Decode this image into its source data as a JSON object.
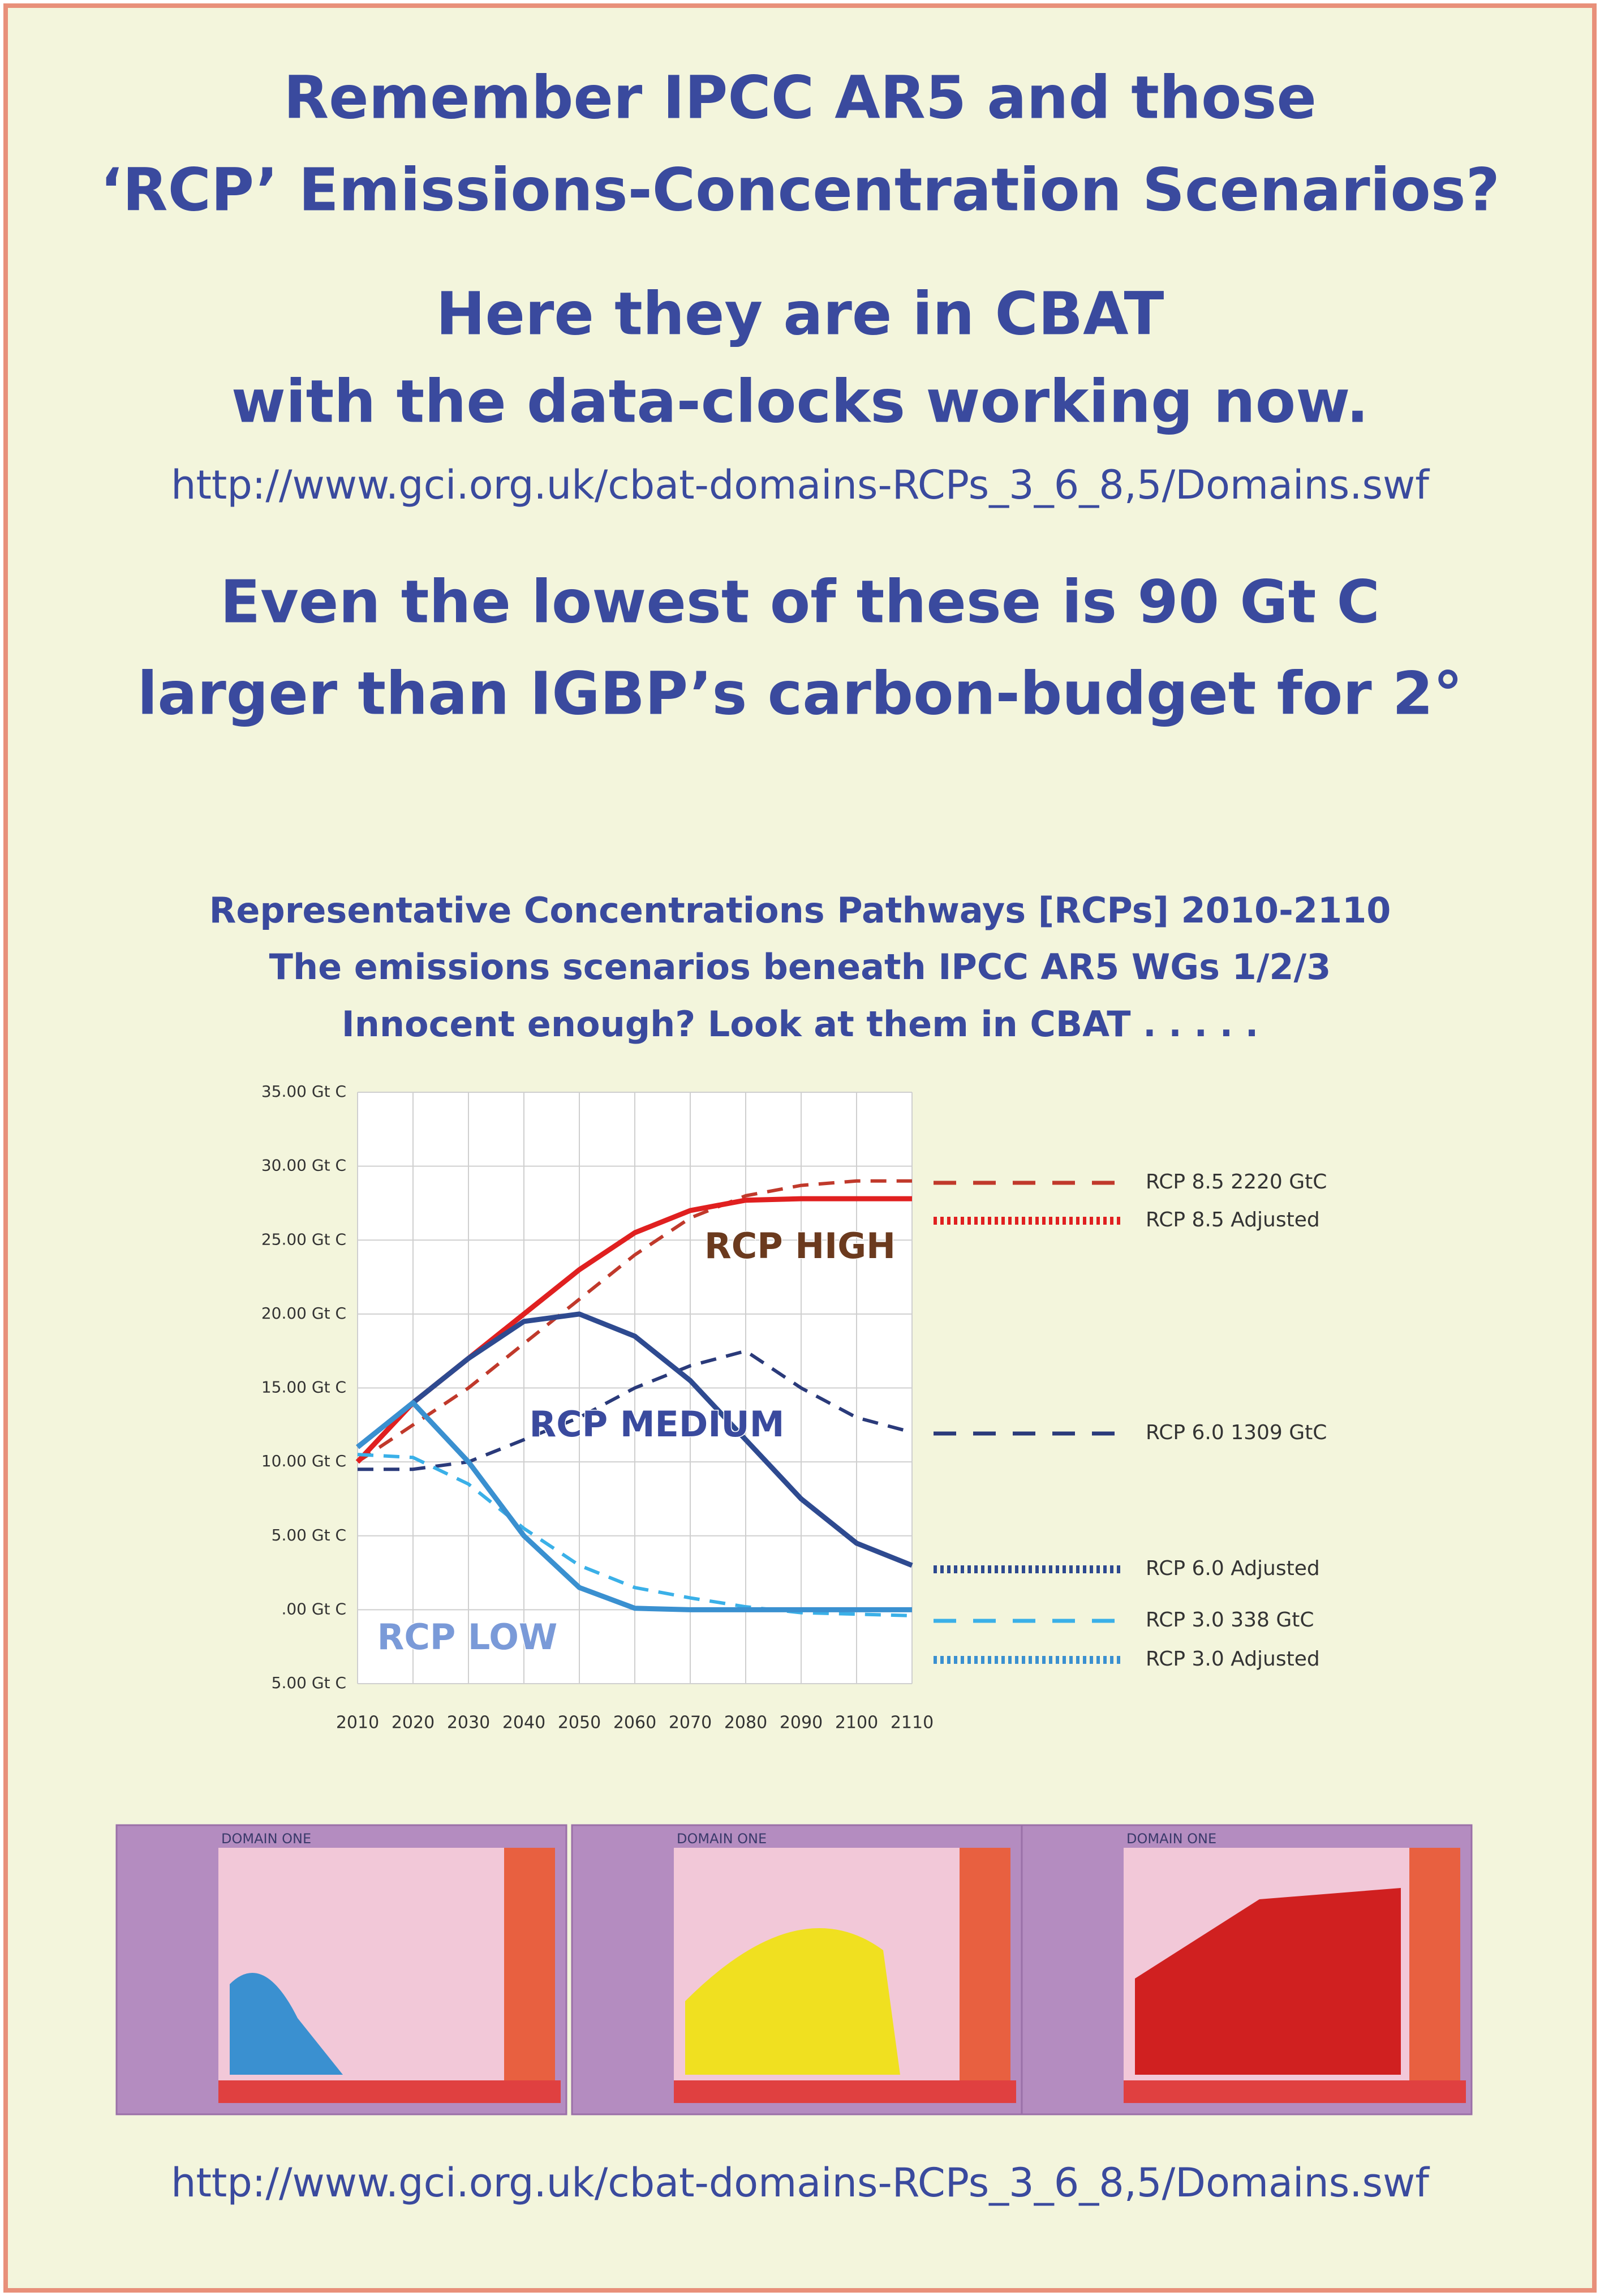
{
  "poster": {
    "heading_1": [
      "Remember IPCC AR5 and those",
      "‘RCP’ Emissions-Concentration Scenarios?"
    ],
    "heading_2": [
      "Here they are in CBAT",
      "with the data-clocks working now."
    ],
    "url_top": "http://www.gci.org.uk/cbat-domains-RCPs_3_6_8,5/Domains.swf",
    "heading_3": [
      "Even the lowest of these is 90 Gt C",
      "larger than IGBP’s carbon-budget for 2°"
    ],
    "thumbnails": [
      "DOMAIN ONE",
      "DOMAIN ONE",
      "DOMAIN ONE"
    ],
    "url_bottom": "http://www.gci.org.uk/cbat-domains-RCPs_3_6_8,5/Domains.swf"
  },
  "chart_data": {
    "type": "line",
    "title": [
      "Representative Concentrations Pathways [RCPs] 2010-2110",
      "The emissions scenarios beneath IPCC AR5 WGs 1/2/3",
      "Innocent enough? Look at them in CBAT  . . . . ."
    ],
    "x": [
      2010,
      2020,
      2030,
      2040,
      2050,
      2060,
      2070,
      2080,
      2090,
      2100,
      2110
    ],
    "xlim": [
      2010,
      2110
    ],
    "xticks": [
      2010,
      2020,
      2030,
      2040,
      2050,
      2060,
      2070,
      2080,
      2090,
      2100,
      2110
    ],
    "ylim": [
      -5,
      35
    ],
    "yticks": [
      {
        "value": -5,
        "label": "5.00 Gt C"
      },
      {
        "value": 0,
        "label": ".00 Gt C"
      },
      {
        "value": 5,
        "label": "5.00 Gt C"
      },
      {
        "value": 10,
        "label": "10.00 Gt C"
      },
      {
        "value": 15,
        "label": "15.00 Gt C"
      },
      {
        "value": 20,
        "label": "20.00 Gt C"
      },
      {
        "value": 25,
        "label": "25.00 Gt C"
      },
      {
        "value": 30,
        "label": "30.00 Gt C"
      },
      {
        "value": 35,
        "label": "35.00 Gt C"
      }
    ],
    "grid": true,
    "series": [
      {
        "name": "RCP 8.5 2220 GtC",
        "color": "#c0392b",
        "line_style": "dashed",
        "values": [
          10,
          12.5,
          15,
          18,
          21,
          24,
          26.5,
          28,
          28.7,
          29,
          29
        ]
      },
      {
        "name": "RCP 8.5 Adjusted",
        "color": "#e02020",
        "line_style": "dotted",
        "values": [
          10,
          14,
          17,
          20,
          23,
          25.5,
          27,
          27.7,
          27.8,
          27.8,
          27.8
        ]
      },
      {
        "name": "RCP 6.0 1309 GtC",
        "color": "#2a3a7a",
        "line_style": "dashed",
        "values": [
          9.5,
          9.5,
          10,
          11.5,
          13,
          15,
          16.5,
          17.5,
          15,
          13,
          12
        ]
      },
      {
        "name": "RCP 6.0 Adjusted",
        "color": "#2e4a90",
        "line_style": "dotted",
        "values": [
          11,
          14,
          17,
          19.5,
          20,
          18.5,
          15.5,
          11.5,
          7.5,
          4.5,
          3
        ]
      },
      {
        "name": "RCP 3.0 338 GtC",
        "color": "#3ab0e8",
        "line_style": "dashed",
        "values": [
          10.5,
          10.3,
          8.5,
          5.5,
          3,
          1.5,
          0.8,
          0.2,
          -0.2,
          -0.3,
          -0.4
        ]
      },
      {
        "name": "RCP  3.0 Adjusted",
        "color": "#3a90d0",
        "line_style": "dotted",
        "values": [
          11,
          14,
          10,
          5,
          1.5,
          0.1,
          0,
          0,
          0,
          0,
          0
        ]
      }
    ],
    "annotations": [
      "RCP HIGH",
      "RCP MEDIUM",
      "RCP LOW"
    ]
  }
}
